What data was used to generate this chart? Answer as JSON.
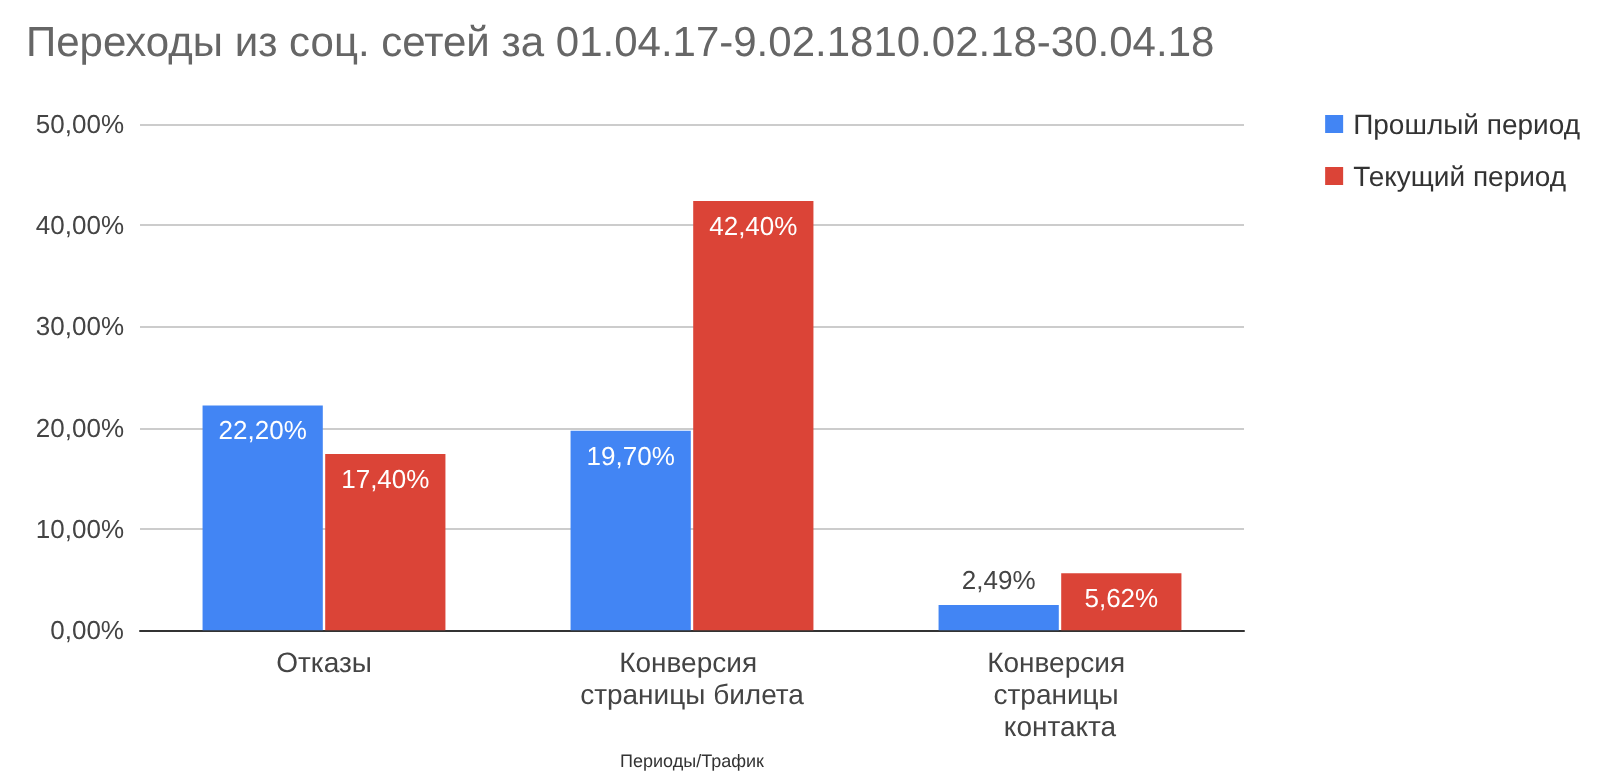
{
  "chart_data": {
    "type": "bar",
    "title": "Переходы из соц. сетей за 01.04.17-9.02.1810.02.18-30.04.18",
    "xlabel": "Периоды/Трафик",
    "categories": [
      "Отказы",
      "Конверсия страницы билета",
      "Конверсия страницы контакта"
    ],
    "series": [
      {
        "name": "Прошлый период",
        "color": "#4285f4",
        "values": [
          22.2,
          19.7,
          2.49
        ],
        "value_labels": [
          "22,20%",
          "19,70%",
          "2,49%"
        ]
      },
      {
        "name": "Текущий период",
        "color": "#db4437",
        "values": [
          17.4,
          42.4,
          5.62
        ],
        "value_labels": [
          "17,40%",
          "42,40%",
          "5,62%"
        ]
      }
    ],
    "ylim": [
      0,
      50
    ],
    "yticks": [
      {
        "value": 0,
        "label": "0,00%"
      },
      {
        "value": 10,
        "label": "10,00%"
      },
      {
        "value": 20,
        "label": "20,00%"
      },
      {
        "value": 30,
        "label": "30,00%"
      },
      {
        "value": 40,
        "label": "40,00%"
      },
      {
        "value": 50,
        "label": "50,00%"
      }
    ],
    "grid": "y",
    "legend": "top right"
  }
}
